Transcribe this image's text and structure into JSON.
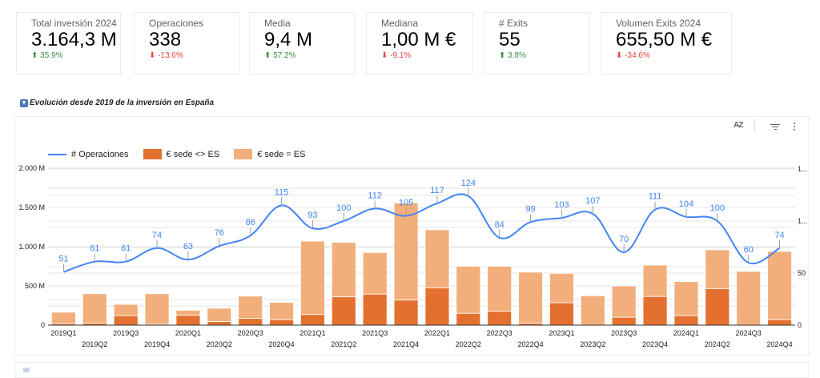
{
  "kpis": [
    {
      "label": "Total inversión 2024",
      "value": "3.164,3 M",
      "delta": "35.9%",
      "direction": "up"
    },
    {
      "label": "Operaciones",
      "value": "338",
      "delta": "-13.6%",
      "direction": "down"
    },
    {
      "label": "Media",
      "value": "9,4 M",
      "delta": "57.2%",
      "direction": "up"
    },
    {
      "label": "Mediana",
      "value": "1,00 M €",
      "delta": "-9.1%",
      "direction": "down"
    },
    {
      "label": "# Exits",
      "value": "55",
      "delta": "3.8%",
      "direction": "up"
    },
    {
      "label": "Volumen Exits 2024",
      "value": "655,50 M €",
      "delta": "-34.6%",
      "direction": "down"
    }
  ],
  "delta_icons": {
    "up": "⬆",
    "down": "⬇"
  },
  "section": {
    "title": "Evolución desde 2019 de la inversión en España",
    "icon": "download-icon"
  },
  "toolbar": {
    "sort_label": "AZ",
    "sort_icon": "sort-az-icon",
    "filter_icon": "filter-icon",
    "more_icon": "more-vert-icon"
  },
  "colors": {
    "line": "#4285f4",
    "sede_diff": "#e3702e",
    "sede_es": "#f2af7b",
    "up": "#3e8e41",
    "down": "#e8453c"
  },
  "chart_data": {
    "type": "bar",
    "title": "Evolución desde 2019 de la inversión en España",
    "legend_position": "top-left",
    "grid": true,
    "categories": [
      "2019Q1",
      "2019Q2",
      "2019Q3",
      "2019Q4",
      "2020Q1",
      "2020Q2",
      "2020Q3",
      "2020Q4",
      "2021Q1",
      "2021Q2",
      "2021Q3",
      "2021Q4",
      "2022Q1",
      "2022Q2",
      "2022Q3",
      "2022Q4",
      "2023Q1",
      "2023Q2",
      "2023Q3",
      "2023Q4",
      "2024Q1",
      "2024Q2",
      "2024Q3",
      "2024Q4"
    ],
    "series": [
      {
        "name": "# Operaciones",
        "type": "line",
        "axis": "right",
        "values": [
          51,
          61,
          61,
          74,
          63,
          76,
          86,
          115,
          93,
          100,
          112,
          105,
          117,
          124,
          84,
          99,
          103,
          107,
          70,
          111,
          104,
          100,
          60,
          74
        ]
      },
      {
        "name": "€ sede <> ES",
        "type": "stacked-bar",
        "axis": "left",
        "values": [
          20,
          25,
          120,
          12,
          125,
          45,
          85,
          70,
          135,
          360,
          395,
          320,
          475,
          150,
          175,
          25,
          285,
          0,
          100,
          365,
          120,
          465,
          0,
          70
        ]
      },
      {
        "name": "€ sede = ES",
        "type": "stacked-bar",
        "axis": "left",
        "values": [
          145,
          375,
          145,
          388,
          65,
          170,
          285,
          220,
          935,
          695,
          530,
          1235,
          740,
          600,
          575,
          650,
          375,
          375,
          400,
          400,
          435,
          495,
          685,
          870
        ]
      }
    ],
    "y_left": {
      "label": "",
      "ticks": [
        "0",
        "500 M",
        "1.000 M",
        "1.500 M",
        "2.000 M"
      ],
      "tick_values": [
        0,
        500,
        1000,
        1500,
        2000
      ],
      "range": [
        0,
        2000
      ]
    },
    "y_right": {
      "label": "",
      "ticks": [
        "0",
        "50",
        "1...",
        "1..."
      ],
      "tick_values": [
        0,
        50,
        100,
        150
      ],
      "range": [
        0,
        150
      ]
    },
    "xlabel": "",
    "ylabel": ""
  }
}
